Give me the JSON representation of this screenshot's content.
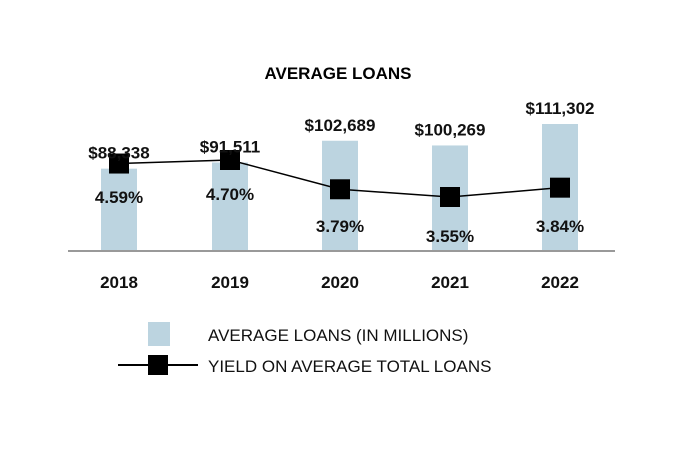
{
  "chart_data": {
    "type": "bar",
    "title": "AVERAGE LOANS",
    "categories": [
      "2018",
      "2019",
      "2020",
      "2021",
      "2022"
    ],
    "series": [
      {
        "name": "AVERAGE LOANS (IN MILLIONS)",
        "kind": "bar",
        "color": "#bcd4e0",
        "values": [
          88338,
          91511,
          102689,
          100269,
          111302
        ],
        "labels": [
          "$88,338",
          "$91,511",
          "$102,689",
          "$100,269",
          "$111,302"
        ]
      },
      {
        "name": "YIELD ON AVERAGE TOTAL LOANS",
        "kind": "line",
        "color": "#000000",
        "values": [
          4.59,
          4.7,
          3.79,
          3.55,
          3.84
        ],
        "labels": [
          "4.59%",
          "4.70%",
          "3.79%",
          "3.55%",
          "3.84%"
        ]
      }
    ],
    "legend_position": "bottom",
    "grid": false
  }
}
